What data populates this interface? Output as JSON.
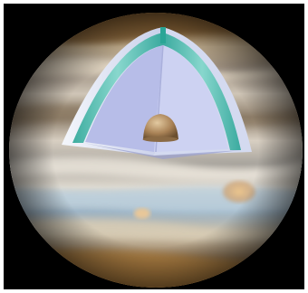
{
  "colors": {
    "frame_background": "#000000",
    "page_background": "#ffffff",
    "core": "#b8946a",
    "metallic_hydrogen_layer": "#c9cdf0",
    "molecular_hydrogen_layer": "#3fb9a8",
    "outer_shell": "#dfe3f5",
    "great_red_spot": "#e2b27a"
  },
  "icons": {
    "core": "hemisphere-core-icon"
  }
}
